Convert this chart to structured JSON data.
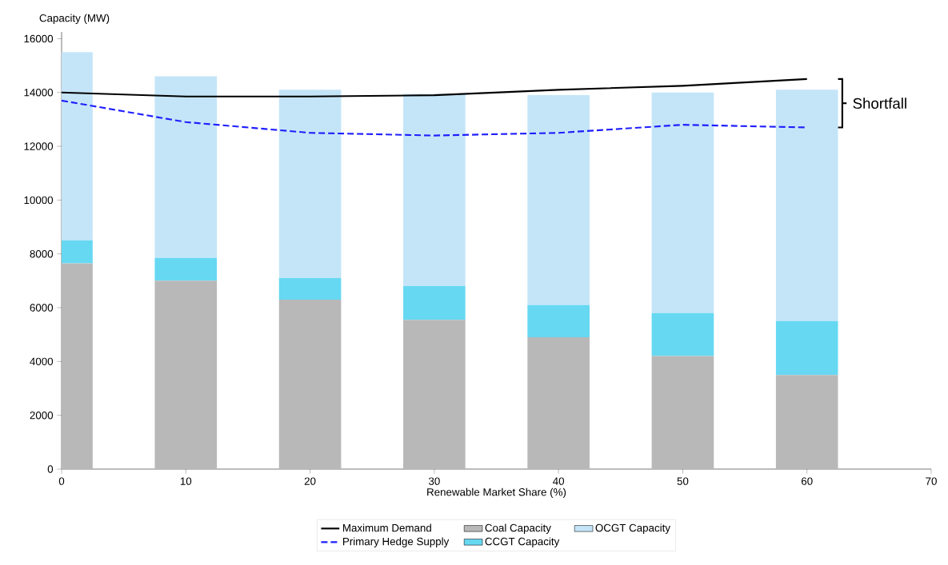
{
  "chart_data": {
    "type": "bar",
    "stacked": true,
    "xlabel": "Renewable Market Share (%)",
    "ylabel": "Capacity (MW)",
    "x": [
      0,
      10,
      20,
      30,
      40,
      50,
      60
    ],
    "series": [
      {
        "name": "Maximum Demand",
        "type": "line",
        "color": "#000000",
        "line_style": "solid",
        "values": [
          14000,
          13850,
          13850,
          13900,
          14100,
          14250,
          14500
        ]
      },
      {
        "name": "Primary Hedge Supply",
        "type": "line",
        "color": "#1f1fff",
        "line_style": "dashed",
        "values": [
          13700,
          12900,
          12500,
          12400,
          12500,
          12800,
          12700
        ]
      },
      {
        "name": "Coal Capacity",
        "type": "bar",
        "color": "#b8b8b8",
        "values": [
          7650,
          7000,
          6300,
          5550,
          4900,
          4200,
          3500
        ]
      },
      {
        "name": "CCGT Capacity",
        "type": "bar",
        "color": "#66d8f2",
        "values": [
          850,
          850,
          800,
          1250,
          1200,
          1600,
          2000
        ]
      },
      {
        "name": "OCGT Capacity",
        "type": "bar",
        "color": "#c4e5f8",
        "values": [
          7000,
          6750,
          7000,
          7150,
          7800,
          8200,
          8600
        ]
      }
    ],
    "xlim": [
      0,
      70
    ],
    "ylim": [
      0,
      16250
    ],
    "xticks": [
      0,
      10,
      20,
      30,
      40,
      50,
      60,
      70
    ],
    "yticks": [
      0,
      2000,
      4000,
      6000,
      8000,
      10000,
      12000,
      14000,
      16000
    ],
    "grid": false,
    "legend": "bottom",
    "annotations": [
      "Shortfall"
    ]
  }
}
